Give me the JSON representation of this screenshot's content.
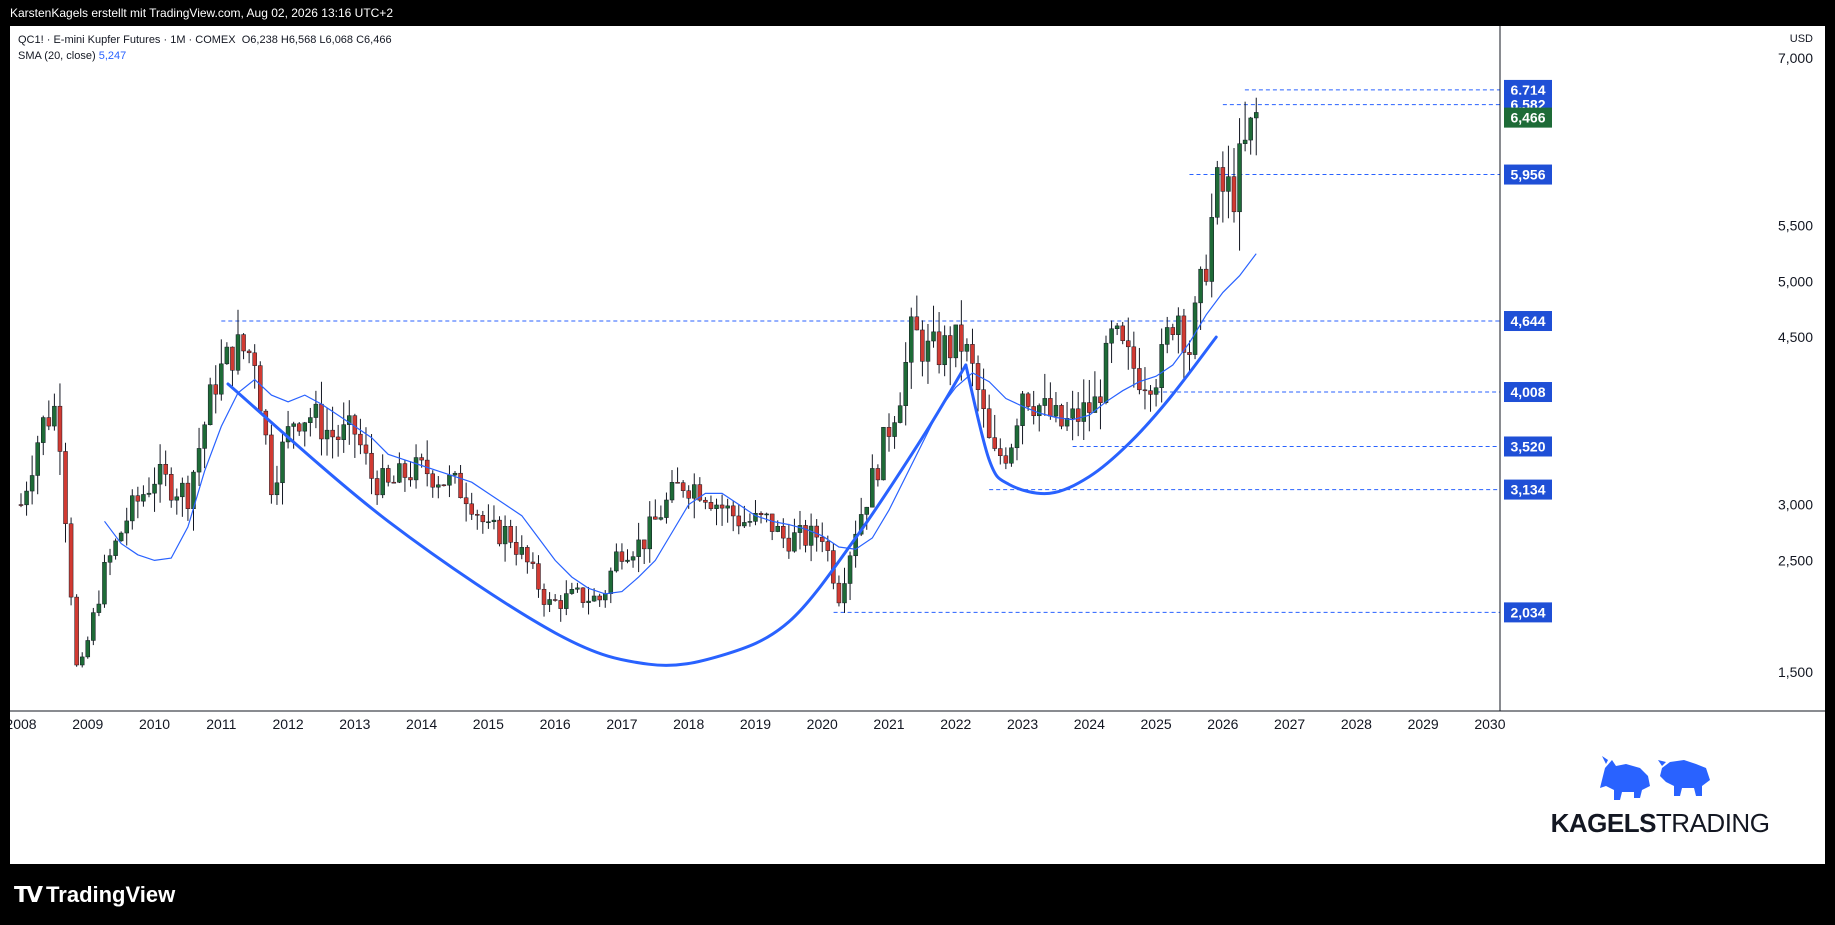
{
  "header": {
    "credit": "KarstenKagels erstellt mit TradingView.com, Aug 02, 2026 13:16 UTC+2"
  },
  "legend": {
    "symbol": "QC1! · E-mini Kupfer Futures · 1M · COMEX",
    "ohlc": "O6,238  H6,568  L6,068  C6,466",
    "sma_label": "SMA (20, close)",
    "sma_value": "5,247"
  },
  "branding": {
    "kagels_bold": "KAGELS",
    "kagels_light": "TRADING",
    "tradingview": "TradingView"
  },
  "colors": {
    "up": "#1e6b37",
    "down": "#d13a32",
    "sma": "#2962ff",
    "cup_curve": "#2962ff",
    "level_line": "#2962ff",
    "label_bg": "#1f4fd6",
    "last_price_bg": "#1e6b37"
  },
  "chart_data": {
    "type": "candlestick",
    "title": "QC1! · E-mini Kupfer Futures · 1M · COMEX",
    "ylabel": "USD",
    "ylim": [
      1.2,
      7.3
    ],
    "xlim": [
      2008.0,
      2030.2
    ],
    "x_ticks": [
      "2008",
      "2009",
      "2010",
      "2011",
      "2012",
      "2013",
      "2014",
      "2015",
      "2016",
      "2017",
      "2018",
      "2019",
      "2020",
      "2021",
      "2022",
      "2023",
      "2024",
      "2025",
      "2026",
      "2027",
      "2028",
      "2029",
      "2030"
    ],
    "y_ticks": [
      "1,500",
      "2,500",
      "3,000",
      "4,500",
      "5,000",
      "5,500",
      "7,000"
    ],
    "levels": [
      {
        "value": 6.714,
        "label": "6,714",
        "x_start": 2026.33
      },
      {
        "value": 6.582,
        "label": "6,582",
        "x_start": 2026.0
      },
      {
        "value": 5.956,
        "label": "5,956",
        "x_start": 2025.5
      },
      {
        "value": 4.644,
        "label": "4,644",
        "x_start": 2011.0
      },
      {
        "value": 4.008,
        "label": "4,008",
        "x_start": 2025.0
      },
      {
        "value": 3.52,
        "label": "3,520",
        "x_start": 2023.75
      },
      {
        "value": 3.134,
        "label": "3,134",
        "x_start": 2022.5
      },
      {
        "value": 2.034,
        "label": "2,034",
        "x_start": 2020.17
      }
    ],
    "last_price": {
      "value": 6.466,
      "label": "6,466"
    },
    "sma_label": "SMA (20, close)",
    "sma_points": [
      [
        2009.25,
        2.85
      ],
      [
        2009.5,
        2.65
      ],
      [
        2009.75,
        2.55
      ],
      [
        2010.0,
        2.5
      ],
      [
        2010.25,
        2.52
      ],
      [
        2010.5,
        2.8
      ],
      [
        2010.75,
        3.3
      ],
      [
        2011.0,
        3.7
      ],
      [
        2011.25,
        4.0
      ],
      [
        2011.5,
        4.12
      ],
      [
        2011.75,
        3.98
      ],
      [
        2012.0,
        3.92
      ],
      [
        2012.25,
        3.98
      ],
      [
        2012.5,
        3.9
      ],
      [
        2012.75,
        3.8
      ],
      [
        2013.0,
        3.7
      ],
      [
        2013.25,
        3.6
      ],
      [
        2013.5,
        3.45
      ],
      [
        2013.75,
        3.4
      ],
      [
        2014.0,
        3.35
      ],
      [
        2014.25,
        3.3
      ],
      [
        2014.5,
        3.25
      ],
      [
        2014.75,
        3.2
      ],
      [
        2015.0,
        3.1
      ],
      [
        2015.25,
        3.0
      ],
      [
        2015.5,
        2.9
      ],
      [
        2015.75,
        2.7
      ],
      [
        2016.0,
        2.5
      ],
      [
        2016.25,
        2.35
      ],
      [
        2016.5,
        2.25
      ],
      [
        2016.75,
        2.2
      ],
      [
        2017.0,
        2.22
      ],
      [
        2017.25,
        2.35
      ],
      [
        2017.5,
        2.5
      ],
      [
        2017.75,
        2.75
      ],
      [
        2018.0,
        3.0
      ],
      [
        2018.25,
        3.1
      ],
      [
        2018.5,
        3.1
      ],
      [
        2018.75,
        3.0
      ],
      [
        2019.0,
        2.9
      ],
      [
        2019.25,
        2.85
      ],
      [
        2019.5,
        2.82
      ],
      [
        2019.75,
        2.78
      ],
      [
        2020.0,
        2.72
      ],
      [
        2020.25,
        2.62
      ],
      [
        2020.5,
        2.6
      ],
      [
        2020.75,
        2.7
      ],
      [
        2021.0,
        2.95
      ],
      [
        2021.25,
        3.25
      ],
      [
        2021.5,
        3.55
      ],
      [
        2021.75,
        3.85
      ],
      [
        2022.0,
        4.05
      ],
      [
        2022.25,
        4.18
      ],
      [
        2022.5,
        4.1
      ],
      [
        2022.75,
        3.95
      ],
      [
        2023.0,
        3.88
      ],
      [
        2023.25,
        3.82
      ],
      [
        2023.5,
        3.78
      ],
      [
        2023.75,
        3.76
      ],
      [
        2024.0,
        3.8
      ],
      [
        2024.25,
        3.92
      ],
      [
        2024.5,
        4.02
      ],
      [
        2024.75,
        4.1
      ],
      [
        2025.0,
        4.15
      ],
      [
        2025.25,
        4.25
      ],
      [
        2025.5,
        4.45
      ],
      [
        2025.75,
        4.7
      ],
      [
        2026.0,
        4.9
      ],
      [
        2026.25,
        5.05
      ],
      [
        2026.5,
        5.247
      ]
    ],
    "cup_curves": [
      {
        "points": [
          [
            2011.1,
            4.08
          ],
          [
            2013.5,
            2.85
          ],
          [
            2016.0,
            1.85
          ],
          [
            2017.4,
            1.57
          ],
          [
            2018.5,
            1.65
          ],
          [
            2019.5,
            1.95
          ],
          [
            2020.5,
            2.7
          ],
          [
            2021.5,
            3.6
          ],
          [
            2022.15,
            4.25
          ]
        ]
      },
      {
        "points": [
          [
            2022.15,
            4.25
          ],
          [
            2022.5,
            3.4
          ],
          [
            2022.8,
            3.18
          ],
          [
            2023.4,
            3.1
          ],
          [
            2024.0,
            3.25
          ],
          [
            2024.6,
            3.55
          ],
          [
            2025.2,
            3.95
          ],
          [
            2025.9,
            4.5
          ]
        ]
      }
    ],
    "anchors": [
      [
        2008.0,
        3.0
      ],
      [
        2008.3,
        3.7
      ],
      [
        2008.55,
        3.9
      ],
      [
        2008.85,
        1.4
      ],
      [
        2009.25,
        2.4
      ],
      [
        2009.6,
        2.9
      ],
      [
        2010.0,
        3.25
      ],
      [
        2010.5,
        3.1
      ],
      [
        2010.9,
        4.1
      ],
      [
        2011.2,
        4.4
      ],
      [
        2011.5,
        4.35
      ],
      [
        2011.75,
        3.2
      ],
      [
        2012.1,
        3.8
      ],
      [
        2012.35,
        3.8
      ],
      [
        2012.7,
        3.6
      ],
      [
        2013.0,
        3.65
      ],
      [
        2013.25,
        3.25
      ],
      [
        2013.5,
        3.15
      ],
      [
        2013.8,
        3.3
      ],
      [
        2014.1,
        3.3
      ],
      [
        2014.4,
        3.2
      ],
      [
        2014.7,
        3.1
      ],
      [
        2015.0,
        2.75
      ],
      [
        2015.3,
        2.75
      ],
      [
        2015.6,
        2.45
      ],
      [
        2015.9,
        2.1
      ],
      [
        2016.3,
        2.18
      ],
      [
        2016.7,
        2.15
      ],
      [
        2016.95,
        2.6
      ],
      [
        2017.3,
        2.65
      ],
      [
        2017.6,
        2.95
      ],
      [
        2017.9,
        3.2
      ],
      [
        2018.2,
        3.15
      ],
      [
        2018.45,
        3.0
      ],
      [
        2018.8,
        2.85
      ],
      [
        2019.2,
        2.85
      ],
      [
        2019.4,
        2.7
      ],
      [
        2019.8,
        2.7
      ],
      [
        2020.0,
        2.75
      ],
      [
        2020.25,
        2.2
      ],
      [
        2020.5,
        2.8
      ],
      [
        2020.8,
        3.3
      ],
      [
        2021.2,
        4.1
      ],
      [
        2021.35,
        4.55
      ],
      [
        2021.6,
        4.35
      ],
      [
        2021.85,
        4.4
      ],
      [
        2022.1,
        4.45
      ],
      [
        2022.3,
        4.1
      ],
      [
        2022.55,
        3.4
      ],
      [
        2022.8,
        3.5
      ],
      [
        2023.0,
        4.05
      ],
      [
        2023.3,
        3.85
      ],
      [
        2023.6,
        3.7
      ],
      [
        2023.85,
        3.8
      ],
      [
        2024.1,
        3.9
      ],
      [
        2024.35,
        4.5
      ],
      [
        2024.55,
        4.3
      ],
      [
        2024.8,
        4.15
      ],
      [
        2025.05,
        4.2
      ],
      [
        2025.3,
        4.8
      ],
      [
        2025.5,
        4.4
      ],
      [
        2025.7,
        5.0
      ],
      [
        2025.9,
        5.8
      ],
      [
        2026.15,
        5.8
      ],
      [
        2026.35,
        6.2
      ],
      [
        2026.5,
        6.466
      ]
    ]
  }
}
